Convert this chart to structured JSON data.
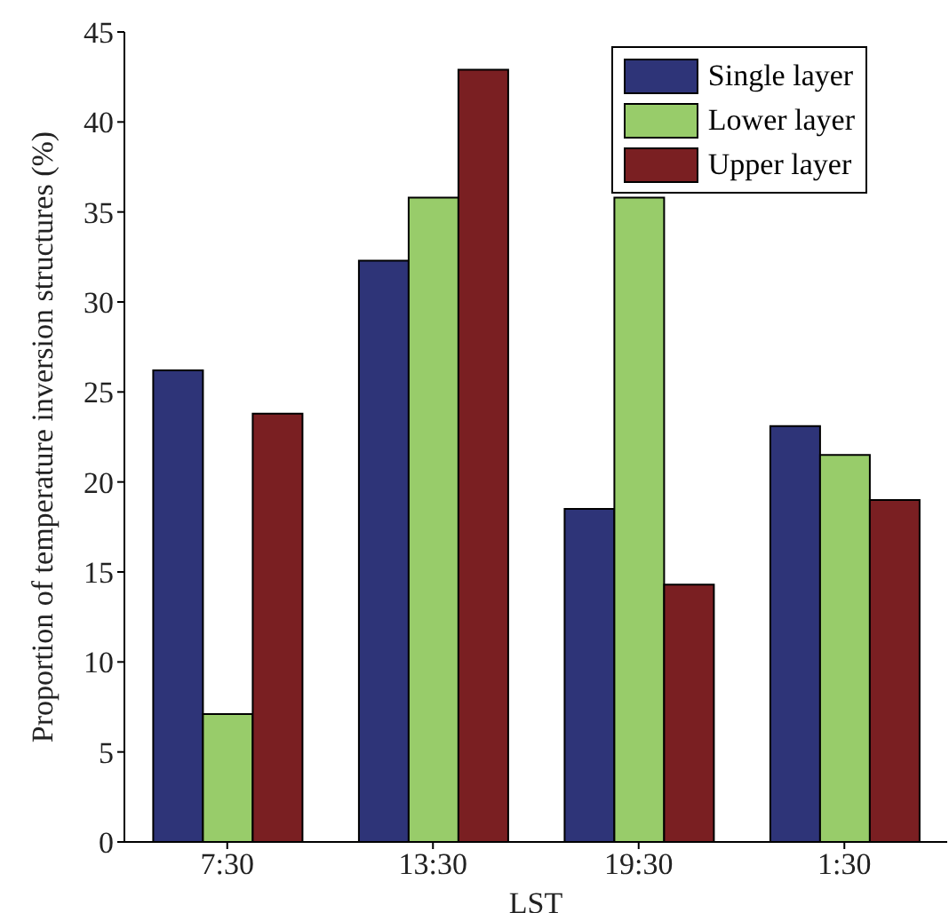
{
  "chart_data": {
    "type": "bar",
    "xlabel": "LST",
    "ylabel": "Proportion of temperature inversion structures (%)",
    "categories": [
      "7:30",
      "13:30",
      "19:30",
      "1:30"
    ],
    "series": [
      {
        "name": "Single layer",
        "color": "#2e3478",
        "values": [
          26.2,
          32.3,
          18.5,
          23.1
        ]
      },
      {
        "name": "Lower layer",
        "color": "#98cc6a",
        "values": [
          7.1,
          35.8,
          35.8,
          21.5
        ]
      },
      {
        "name": "Upper layer",
        "color": "#7a1f22",
        "values": [
          23.8,
          42.9,
          14.3,
          19.0
        ]
      }
    ],
    "ylim": [
      0,
      45
    ],
    "yticks": [
      0,
      5,
      10,
      15,
      20,
      25,
      30,
      35,
      40,
      45
    ],
    "grid": false,
    "legend": "top right"
  }
}
